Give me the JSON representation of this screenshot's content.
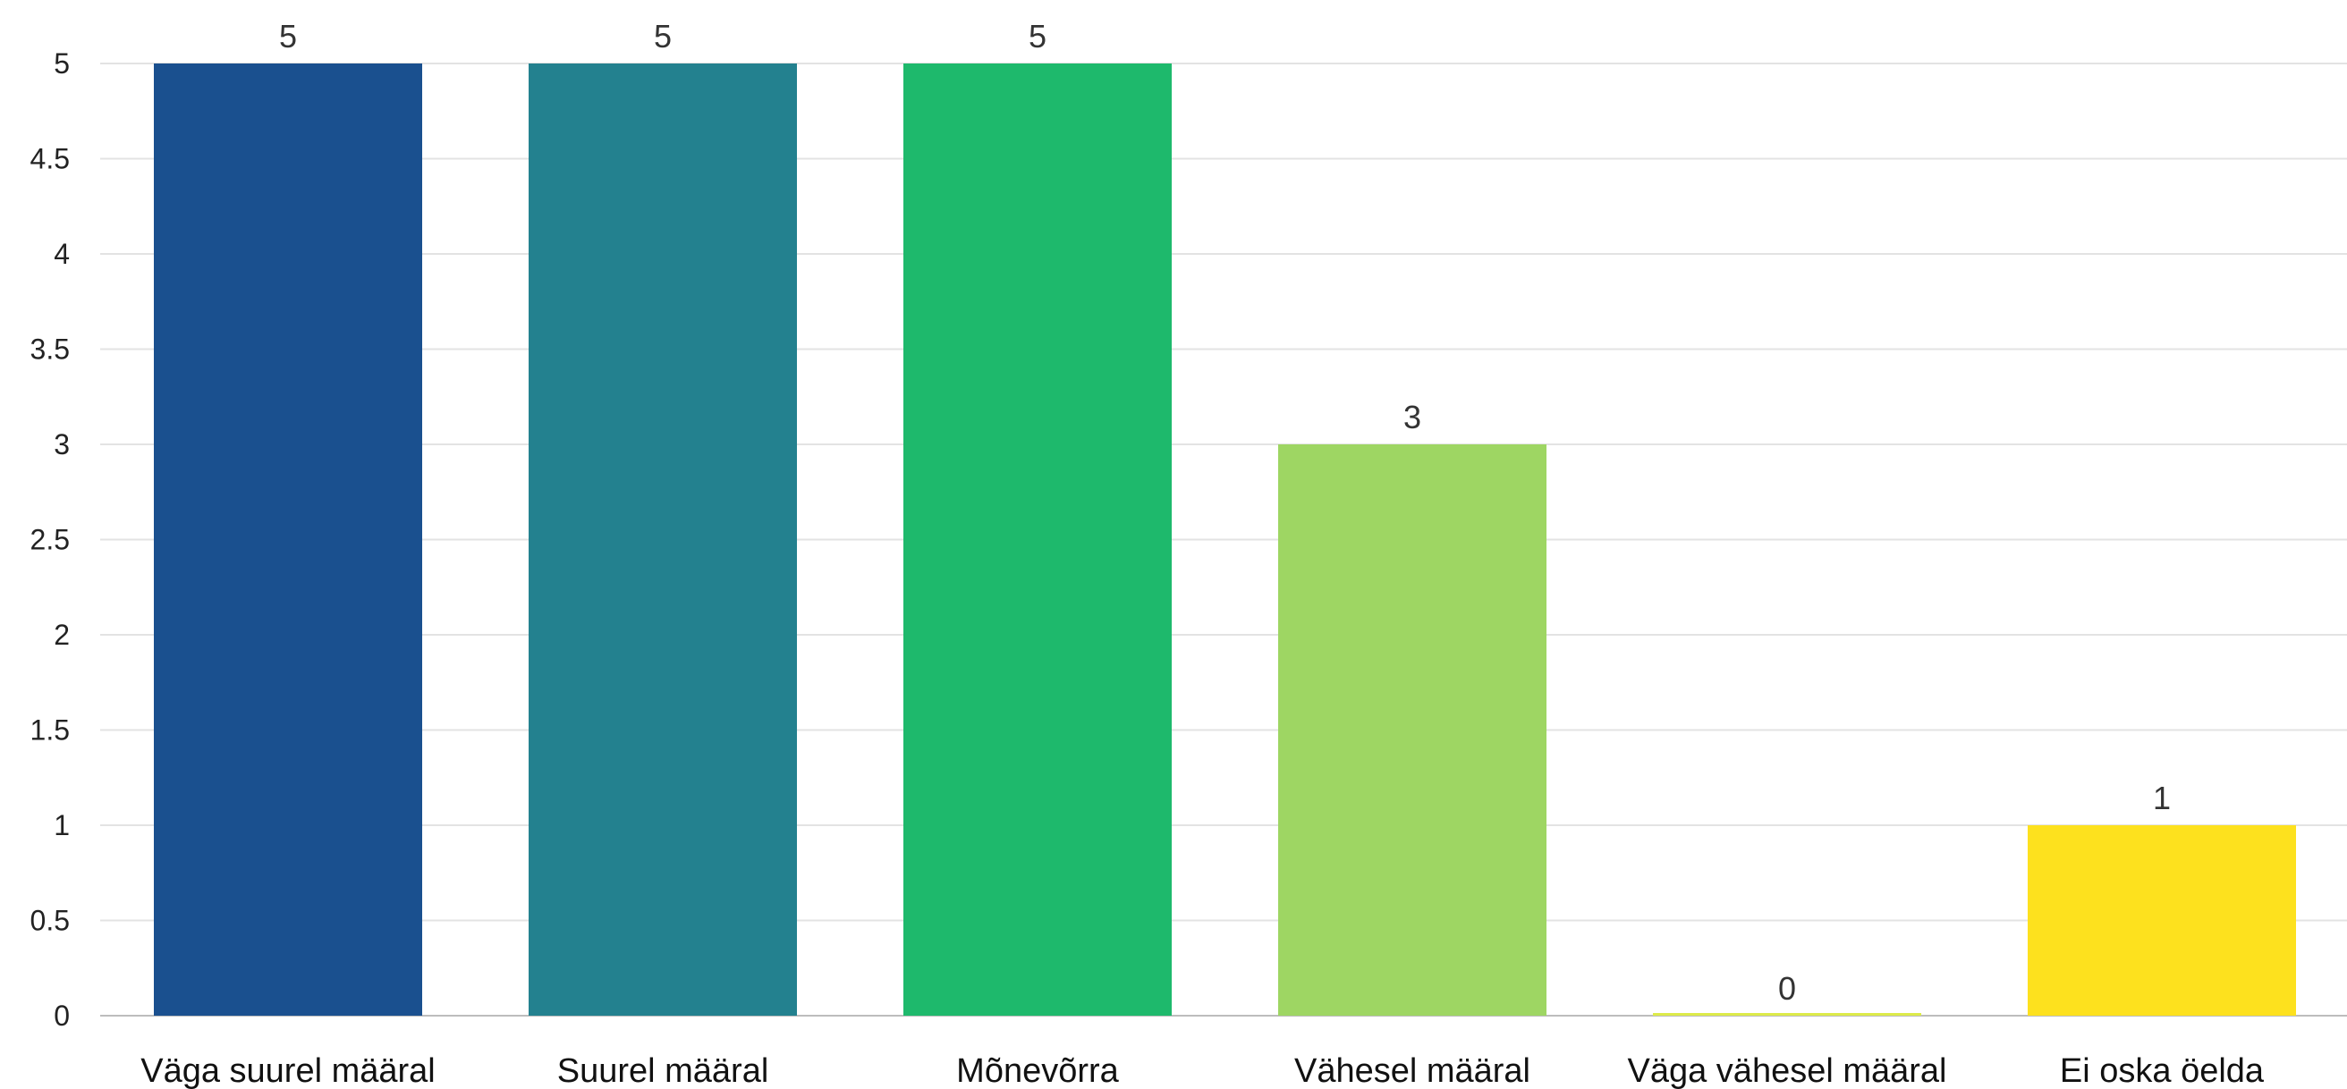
{
  "chart_data": {
    "type": "bar",
    "categories": [
      "Väga suurel määral",
      "Suurel määral",
      "Mõnevõrra",
      "Vähesel määral",
      "Väga vähesel määral",
      "Ei oska öelda"
    ],
    "values": [
      5,
      5,
      5,
      3,
      0,
      1
    ],
    "colors": [
      "#1a508f",
      "#23818f",
      "#1eb96c",
      "#9ed663",
      "#ddeb4a",
      "#fde11e"
    ],
    "title": "",
    "xlabel": "",
    "ylabel": "",
    "ylim": [
      0,
      5
    ],
    "yticks": [
      "0",
      "0.5",
      "1",
      "1.5",
      "2",
      "2.5",
      "3",
      "3.5",
      "4",
      "4.5",
      "5"
    ],
    "grid": true,
    "legend": "none"
  }
}
